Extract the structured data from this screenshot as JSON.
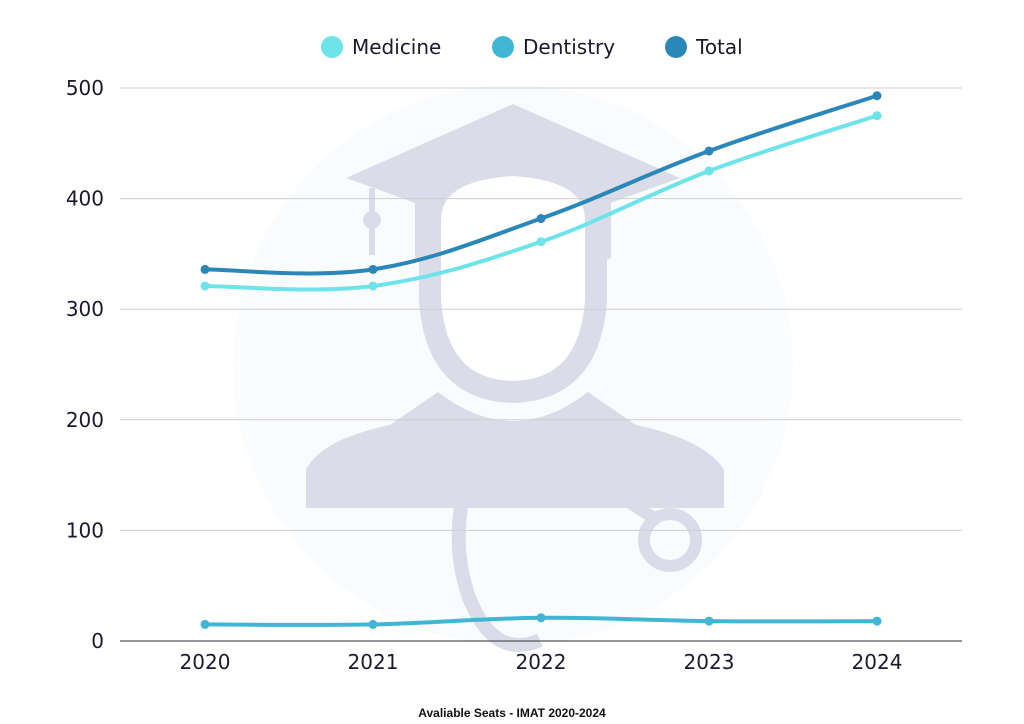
{
  "chart_data": {
    "type": "line",
    "categories": [
      "2020",
      "2021",
      "2022",
      "2023",
      "2024"
    ],
    "series": [
      {
        "name": "Medicine",
        "color": "#6ee3ea",
        "values": [
          321,
          321,
          361,
          425,
          475
        ]
      },
      {
        "name": "Dentistry",
        "color": "#41b6d4",
        "values": [
          15,
          15,
          21,
          18,
          18
        ]
      },
      {
        "name": "Total",
        "color": "#2b87b8",
        "values": [
          336,
          336,
          382,
          443,
          493
        ]
      }
    ],
    "yticks": [
      "0",
      "100",
      "200",
      "300",
      "400",
      "500"
    ],
    "ylim": [
      0,
      500
    ],
    "grid": true,
    "legend_position": "top-center",
    "caption": "Avaliable Seats - IMAT 2020-2024",
    "watermark_icon": "graduate-doctor-icon"
  }
}
